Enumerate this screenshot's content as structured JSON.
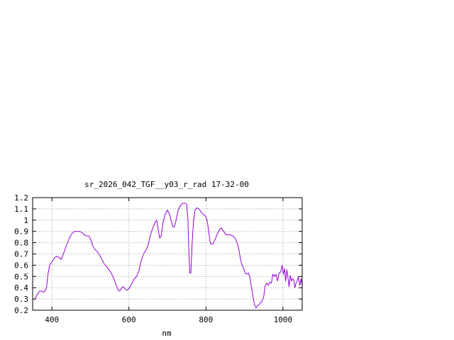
{
  "chart_data": {
    "type": "line",
    "title": "sr_2026_042_TGF__y03_r_rad 17-32-00",
    "xlabel": "nm",
    "ylabel": "",
    "xlim": [
      350,
      1050
    ],
    "ylim": [
      0.2,
      1.2
    ],
    "xticks": [
      400,
      600,
      800,
      1000
    ],
    "xtick_labels": [
      "400",
      "600",
      "800",
      "1000"
    ],
    "yticks": [
      0.2,
      0.3,
      0.4,
      0.5,
      0.6,
      0.7,
      0.8,
      0.9,
      1.0,
      1.1,
      1.2
    ],
    "ytick_labels": [
      "0.2",
      "0.3",
      "0.4",
      "0.5",
      "0.6",
      "0.7",
      "0.8",
      "0.9",
      "1",
      "1.1",
      "1.2"
    ],
    "grid": true,
    "line_color": "#9400d3",
    "series": [
      {
        "values": [
          [
            350,
            0.3
          ],
          [
            356,
            0.3
          ],
          [
            362,
            0.34
          ],
          [
            368,
            0.37
          ],
          [
            374,
            0.37
          ],
          [
            378,
            0.36
          ],
          [
            382,
            0.37
          ],
          [
            386,
            0.4
          ],
          [
            390,
            0.52
          ],
          [
            394,
            0.6
          ],
          [
            400,
            0.63
          ],
          [
            406,
            0.66
          ],
          [
            412,
            0.68
          ],
          [
            418,
            0.67
          ],
          [
            424,
            0.65
          ],
          [
            430,
            0.7
          ],
          [
            436,
            0.76
          ],
          [
            442,
            0.81
          ],
          [
            448,
            0.86
          ],
          [
            454,
            0.89
          ],
          [
            460,
            0.9
          ],
          [
            466,
            0.9
          ],
          [
            472,
            0.9
          ],
          [
            478,
            0.89
          ],
          [
            484,
            0.87
          ],
          [
            490,
            0.86
          ],
          [
            496,
            0.86
          ],
          [
            502,
            0.82
          ],
          [
            506,
            0.77
          ],
          [
            512,
            0.74
          ],
          [
            518,
            0.72
          ],
          [
            524,
            0.69
          ],
          [
            530,
            0.65
          ],
          [
            536,
            0.61
          ],
          [
            542,
            0.59
          ],
          [
            548,
            0.56
          ],
          [
            554,
            0.53
          ],
          [
            560,
            0.49
          ],
          [
            566,
            0.43
          ],
          [
            572,
            0.38
          ],
          [
            576,
            0.37
          ],
          [
            580,
            0.39
          ],
          [
            584,
            0.41
          ],
          [
            588,
            0.4
          ],
          [
            592,
            0.38
          ],
          [
            596,
            0.38
          ],
          [
            602,
            0.4
          ],
          [
            608,
            0.44
          ],
          [
            614,
            0.48
          ],
          [
            620,
            0.5
          ],
          [
            626,
            0.55
          ],
          [
            632,
            0.64
          ],
          [
            638,
            0.7
          ],
          [
            644,
            0.73
          ],
          [
            650,
            0.78
          ],
          [
            656,
            0.87
          ],
          [
            662,
            0.93
          ],
          [
            668,
            0.98
          ],
          [
            672,
            1.0
          ],
          [
            676,
            0.92
          ],
          [
            680,
            0.84
          ],
          [
            684,
            0.86
          ],
          [
            688,
            0.97
          ],
          [
            694,
            1.05
          ],
          [
            700,
            1.09
          ],
          [
            706,
            1.05
          ],
          [
            710,
            0.99
          ],
          [
            714,
            0.94
          ],
          [
            718,
            0.94
          ],
          [
            722,
            0.99
          ],
          [
            728,
            1.09
          ],
          [
            734,
            1.13
          ],
          [
            740,
            1.15
          ],
          [
            746,
            1.15
          ],
          [
            750,
            1.14
          ],
          [
            753,
            1.02
          ],
          [
            756,
            0.7
          ],
          [
            758,
            0.53
          ],
          [
            761,
            0.53
          ],
          [
            764,
            0.78
          ],
          [
            768,
            1.0
          ],
          [
            772,
            1.09
          ],
          [
            776,
            1.11
          ],
          [
            782,
            1.1
          ],
          [
            788,
            1.07
          ],
          [
            794,
            1.05
          ],
          [
            800,
            1.03
          ],
          [
            804,
            0.98
          ],
          [
            808,
            0.88
          ],
          [
            812,
            0.79
          ],
          [
            818,
            0.79
          ],
          [
            824,
            0.83
          ],
          [
            830,
            0.88
          ],
          [
            836,
            0.92
          ],
          [
            840,
            0.93
          ],
          [
            846,
            0.9
          ],
          [
            852,
            0.87
          ],
          [
            858,
            0.87
          ],
          [
            864,
            0.87
          ],
          [
            870,
            0.86
          ],
          [
            876,
            0.84
          ],
          [
            882,
            0.79
          ],
          [
            886,
            0.73
          ],
          [
            890,
            0.65
          ],
          [
            894,
            0.6
          ],
          [
            898,
            0.57
          ],
          [
            902,
            0.53
          ],
          [
            906,
            0.52
          ],
          [
            910,
            0.53
          ],
          [
            914,
            0.5
          ],
          [
            918,
            0.41
          ],
          [
            922,
            0.33
          ],
          [
            926,
            0.25
          ],
          [
            930,
            0.22
          ],
          [
            934,
            0.24
          ],
          [
            938,
            0.25
          ],
          [
            942,
            0.27
          ],
          [
            946,
            0.28
          ],
          [
            950,
            0.32
          ],
          [
            954,
            0.42
          ],
          [
            958,
            0.44
          ],
          [
            962,
            0.42
          ],
          [
            966,
            0.45
          ],
          [
            970,
            0.44
          ],
          [
            974,
            0.52
          ],
          [
            978,
            0.5
          ],
          [
            982,
            0.52
          ],
          [
            986,
            0.46
          ],
          [
            990,
            0.53
          ],
          [
            994,
            0.54
          ],
          [
            998,
            0.6
          ],
          [
            1001,
            0.52
          ],
          [
            1004,
            0.57
          ],
          [
            1007,
            0.46
          ],
          [
            1010,
            0.56
          ],
          [
            1013,
            0.49
          ],
          [
            1016,
            0.41
          ],
          [
            1019,
            0.51
          ],
          [
            1022,
            0.46
          ],
          [
            1025,
            0.48
          ],
          [
            1028,
            0.47
          ],
          [
            1031,
            0.4
          ],
          [
            1034,
            0.44
          ],
          [
            1037,
            0.46
          ],
          [
            1040,
            0.5
          ],
          [
            1044,
            0.42
          ],
          [
            1047,
            0.48
          ],
          [
            1050,
            0.42
          ]
        ]
      }
    ]
  }
}
